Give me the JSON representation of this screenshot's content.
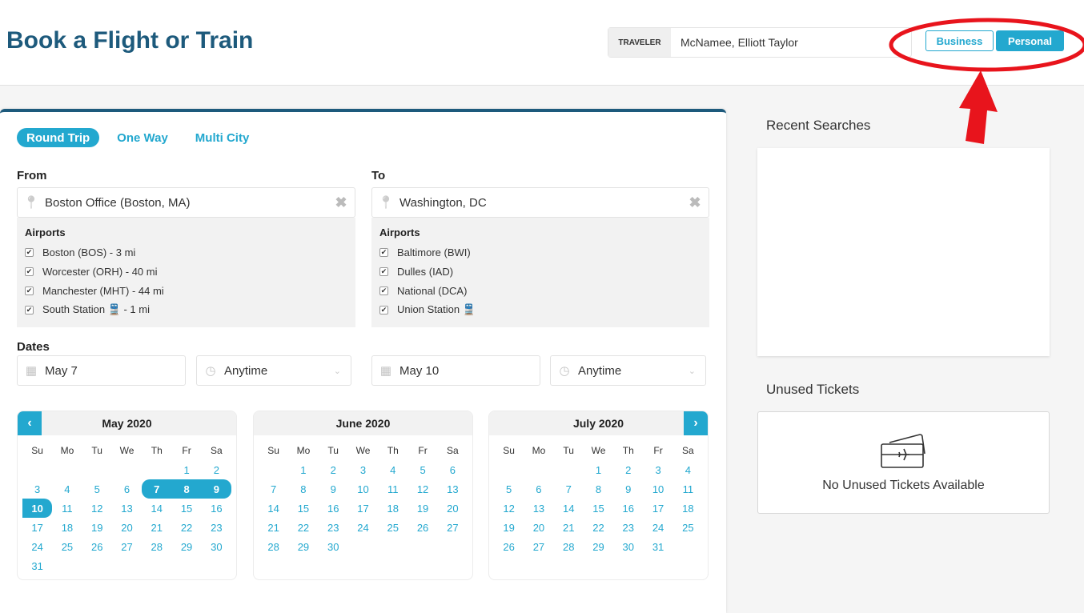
{
  "header": {
    "title": "Book a Flight or Train",
    "traveler_label": "TRAVELER",
    "traveler_value": "McNamee, Elliott Taylor",
    "business_label": "Business",
    "personal_label": "Personal",
    "active_mode": "Personal"
  },
  "trip_tabs": [
    {
      "label": "Round Trip",
      "active": true
    },
    {
      "label": "One Way",
      "active": false
    },
    {
      "label": "Multi City",
      "active": false
    }
  ],
  "from": {
    "label": "From",
    "value": "Boston Office (Boston, MA)",
    "airports_title": "Airports",
    "airports": [
      {
        "label": "Boston (BOS) - 3 mi",
        "checked": true
      },
      {
        "label": "Worcester (ORH) - 40 mi",
        "checked": true
      },
      {
        "label": "Manchester (MHT) - 44 mi",
        "checked": true
      },
      {
        "label": "South Station 🚆 - 1 mi",
        "checked": true
      }
    ]
  },
  "to": {
    "label": "To",
    "value": "Washington, DC",
    "airports_title": "Airports",
    "airports": [
      {
        "label": "Baltimore (BWI)",
        "checked": true
      },
      {
        "label": "Dulles (IAD)",
        "checked": true
      },
      {
        "label": "National (DCA)",
        "checked": true
      },
      {
        "label": "Union Station 🚆",
        "checked": true
      }
    ]
  },
  "dates": {
    "label": "Dates",
    "depart_date": "May 7",
    "depart_time": "Anytime",
    "return_date": "May 10",
    "return_time": "Anytime"
  },
  "calendar": {
    "weekdays": [
      "Su",
      "Mo",
      "Tu",
      "We",
      "Th",
      "Fr",
      "Sa"
    ],
    "months": [
      {
        "title": "May 2020",
        "first_weekday": 5,
        "days": 31,
        "highlighted": [
          7,
          8,
          9,
          10
        ]
      },
      {
        "title": "June 2020",
        "first_weekday": 1,
        "days": 30,
        "highlighted": []
      },
      {
        "title": "July 2020",
        "first_weekday": 3,
        "days": 31,
        "highlighted": []
      }
    ]
  },
  "sidebar": {
    "recent_title": "Recent Searches",
    "unused_title": "Unused Tickets",
    "unused_empty": "No Unused Tickets Available"
  },
  "colors": {
    "accent": "#23a8cf",
    "title": "#1d5a7c",
    "annotation": "#e8141c"
  }
}
